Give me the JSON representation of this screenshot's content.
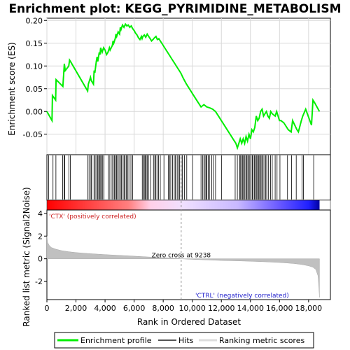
{
  "chart_data": {
    "type": "line",
    "title": "Enrichment plot: KEGG_PYRIMIDINE_METABOLISM",
    "es_panel": {
      "ylabel": "Enrichment score (ES)",
      "ylim": [
        -0.095,
        0.205
      ],
      "yticks": [
        -0.05,
        0.0,
        0.05,
        0.1,
        0.15,
        0.2
      ],
      "ytick_labels": [
        "-0.05",
        "0.00",
        "0.05",
        "0.10",
        "0.15",
        "0.20"
      ],
      "grid": true,
      "series": [
        {
          "name": "Enrichment profile",
          "color": "#00ee00",
          "x": [
            0,
            350,
            380,
            600,
            630,
            1100,
            1150,
            1200,
            1260,
            1500,
            1560,
            1620,
            2800,
            2850,
            3000,
            3050,
            3200,
            3250,
            3300,
            3400,
            3450,
            3500,
            3600,
            3650,
            3700,
            3800,
            3900,
            4000,
            4100,
            4200,
            4300,
            4350,
            4500,
            4550,
            4600,
            4700,
            4750,
            4800,
            4900,
            5000,
            5050,
            5100,
            5200,
            5300,
            5400,
            5500,
            5600,
            5700,
            5800,
            5900,
            6000,
            6100,
            6200,
            6300,
            6400,
            6500,
            6550,
            6600,
            6700,
            6800,
            6900,
            7000,
            7100,
            7200,
            7300,
            7400,
            7500,
            7600,
            7700,
            7800,
            8000,
            8200,
            8400,
            8600,
            8800,
            9000,
            9200,
            9400,
            9600,
            9800,
            10000,
            10200,
            10400,
            10600,
            10800,
            11000,
            11200,
            11400,
            11600,
            11800,
            12000,
            12200,
            12400,
            12600,
            12800,
            13000,
            13100,
            13200,
            13300,
            13400,
            13500,
            13600,
            13700,
            13800,
            13900,
            14000,
            14100,
            14200,
            14300,
            14400,
            14500,
            14600,
            14700,
            14800,
            14900,
            15000,
            15100,
            15200,
            15300,
            15400,
            15500,
            15700,
            15800,
            16000,
            16100,
            16300,
            16600,
            16800,
            16900,
            17200,
            17300,
            17500,
            17600,
            17800,
            18200,
            18300,
            18400,
            18750
          ],
          "y": [
            0.0,
            -0.02,
            0.035,
            0.025,
            0.07,
            0.055,
            0.08,
            0.105,
            0.09,
            0.1,
            0.113,
            0.11,
            0.045,
            0.06,
            0.075,
            0.068,
            0.06,
            0.09,
            0.085,
            0.11,
            0.12,
            0.11,
            0.13,
            0.125,
            0.14,
            0.13,
            0.14,
            0.135,
            0.125,
            0.13,
            0.14,
            0.135,
            0.145,
            0.155,
            0.15,
            0.16,
            0.17,
            0.165,
            0.175,
            0.17,
            0.185,
            0.18,
            0.19,
            0.185,
            0.192,
            0.188,
            0.19,
            0.185,
            0.188,
            0.182,
            0.178,
            0.172,
            0.168,
            0.162,
            0.158,
            0.165,
            0.16,
            0.165,
            0.168,
            0.163,
            0.17,
            0.165,
            0.16,
            0.155,
            0.158,
            0.162,
            0.165,
            0.158,
            0.16,
            0.155,
            0.145,
            0.135,
            0.125,
            0.115,
            0.105,
            0.095,
            0.085,
            0.072,
            0.06,
            0.05,
            0.04,
            0.03,
            0.02,
            0.01,
            0.015,
            0.01,
            0.008,
            0.005,
            0.0,
            -0.01,
            -0.02,
            -0.03,
            -0.04,
            -0.05,
            -0.06,
            -0.07,
            -0.08,
            -0.07,
            -0.06,
            -0.07,
            -0.06,
            -0.07,
            -0.055,
            -0.065,
            -0.05,
            -0.06,
            -0.04,
            -0.045,
            -0.035,
            -0.01,
            -0.02,
            -0.015,
            0.0,
            0.005,
            -0.01,
            -0.005,
            0.0,
            -0.01,
            -0.015,
            0.0,
            -0.005,
            -0.01,
            0.0,
            -0.02,
            -0.02,
            -0.025,
            -0.04,
            -0.045,
            -0.02,
            -0.04,
            -0.045,
            -0.02,
            -0.01,
            0.005,
            -0.03,
            0.025,
            0.02,
            0.0
          ]
        }
      ]
    },
    "hits": [
      120,
      420,
      620,
      1080,
      1180,
      1230,
      1520,
      1610,
      2820,
      2900,
      3030,
      3080,
      3240,
      3320,
      3430,
      3480,
      3560,
      3630,
      3700,
      3760,
      3840,
      3930,
      4230,
      4330,
      4480,
      4560,
      4640,
      4720,
      4790,
      4860,
      4960,
      5060,
      5130,
      5240,
      5310,
      5380,
      5470,
      5560,
      5640,
      5780,
      5900,
      6560,
      6620,
      6700,
      6760,
      6830,
      6900,
      6990,
      7150,
      7330,
      7420,
      7480,
      7570,
      7680,
      7800,
      8050,
      8350,
      8450,
      8520,
      8640,
      8760,
      8840,
      8960,
      9020,
      9130,
      9240,
      9320,
      9460,
      9620,
      10020,
      10600,
      10720,
      10800,
      10880,
      10960,
      11010,
      11100,
      11180,
      11340,
      11430,
      11600,
      12020,
      12950,
      13100,
      13250,
      13300,
      13370,
      13450,
      13520,
      13590,
      13680,
      13740,
      13820,
      13900,
      13960,
      14050,
      14130,
      14180,
      14270,
      14330,
      14410,
      14480,
      14560,
      14630,
      14700,
      14780,
      14850,
      14930,
      15050,
      15120,
      15230,
      15380,
      15500,
      15700,
      15830,
      16030,
      16550,
      16830,
      17150,
      17550,
      17650,
      18350
    ],
    "ranked_metric": {
      "ylabel": "Ranked list metric (Signal2Noise)",
      "ylim": [
        -3.6,
        4.3
      ],
      "yticks": [
        -2,
        0,
        2,
        4
      ],
      "ytick_labels": [
        "-2",
        "0",
        "2",
        "4"
      ],
      "xlabel": "Rank in Ordered Dataset",
      "xlim": [
        0,
        19500
      ],
      "xticks": [
        0,
        2000,
        4000,
        6000,
        8000,
        10000,
        12000,
        14000,
        16000,
        18000
      ],
      "xtick_labels": [
        "0",
        "2,000",
        "4,000",
        "6,000",
        "8,000",
        "10,000",
        "12,000",
        "14,000",
        "16,000",
        "18,000"
      ],
      "zero_cross": 9238,
      "zero_cross_label": "Zero cross at 9238",
      "pos_label": "'CTX' (positively correlated)",
      "neg_label": "'CTRL' (negatively correlated)",
      "n_genes": 18750,
      "profile_x": [
        0,
        50,
        150,
        300,
        600,
        1000,
        1500,
        2000,
        3000,
        4000,
        5000,
        6000,
        7000,
        8000,
        9000,
        9238,
        10000,
        11000,
        12000,
        13000,
        14000,
        15000,
        16000,
        16500,
        17000,
        17500,
        18000,
        18300,
        18500,
        18650,
        18700,
        18750
      ],
      "profile_y": [
        2.0,
        1.45,
        1.2,
        1.0,
        0.85,
        0.72,
        0.62,
        0.55,
        0.45,
        0.37,
        0.3,
        0.23,
        0.16,
        0.1,
        0.03,
        0.0,
        -0.05,
        -0.1,
        -0.15,
        -0.18,
        -0.22,
        -0.27,
        -0.33,
        -0.37,
        -0.42,
        -0.5,
        -0.62,
        -0.75,
        -0.95,
        -1.5,
        -2.4,
        -3.4
      ],
      "fill_color": "#c0c0c0"
    },
    "heatmap_gradient": {
      "colors": [
        "#ff0000",
        "#ff8080",
        "#ffd0e8",
        "#f0e0ff",
        "#c8b8ff",
        "#6a5aff",
        "#2020ff",
        "#0000a0"
      ],
      "stops": [
        0.0,
        0.3,
        0.38,
        0.5,
        0.7,
        0.85,
        0.96,
        1.0
      ]
    },
    "legend": [
      {
        "label": "Enrichment profile",
        "color": "#00ee00"
      },
      {
        "label": "Hits",
        "color": "#000000"
      },
      {
        "label": "Ranking metric scores",
        "color": "#c0c0c0"
      }
    ]
  }
}
